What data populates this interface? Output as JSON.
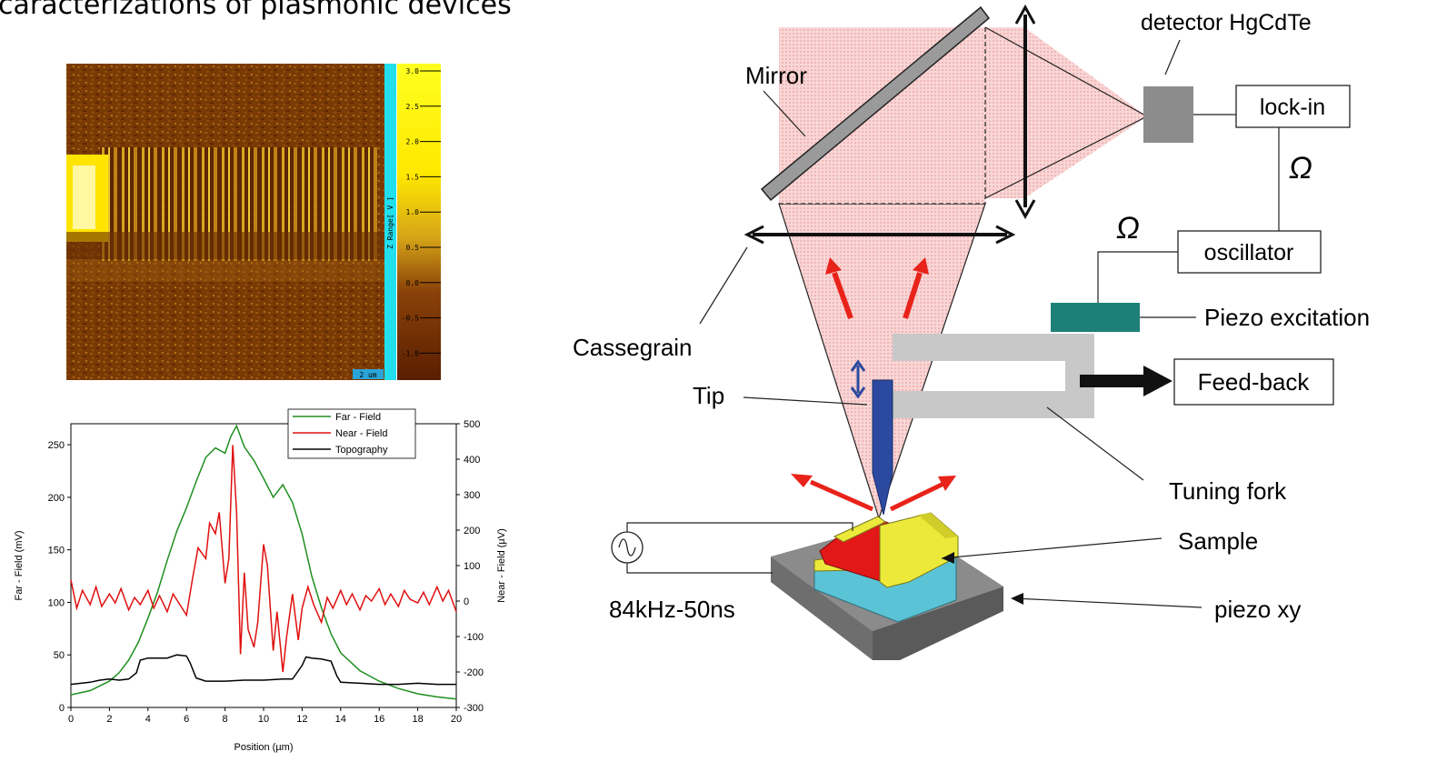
{
  "page_title": "caracterizations of plasmonic devices",
  "afm_map": {
    "colorbar_ticks": [
      "3.0",
      "2.5",
      "2.0",
      "1.5",
      "1.0",
      "0.5",
      "0.0",
      "-0.5",
      "-1.0"
    ],
    "colorbar_label": "Z Range[ V ]",
    "scale_label": "2 um"
  },
  "chart_data": {
    "type": "line",
    "xlabel": "Position (µm)",
    "ylabel": "Far - Field (mV)",
    "y2label": "Near - Field (µV)",
    "xlim": [
      0,
      20
    ],
    "ylim": [
      0,
      270
    ],
    "y2lim": [
      -300,
      500
    ],
    "x_ticks": [
      0,
      2,
      4,
      6,
      8,
      10,
      12,
      14,
      16,
      18,
      20
    ],
    "y_ticks": [
      0,
      50,
      100,
      150,
      200,
      250
    ],
    "y2_ticks": [
      -300,
      -200,
      -100,
      0,
      100,
      200,
      300,
      400,
      500
    ],
    "legend_position": "top-right",
    "series": [
      {
        "name": "Far - Field",
        "axis": "left",
        "color": "#1f8f1f",
        "x": [
          0,
          1,
          2,
          2.5,
          3,
          3.5,
          4,
          4.5,
          5,
          5.5,
          6,
          6.5,
          7,
          7.5,
          8,
          8.3,
          8.6,
          9,
          9.5,
          10,
          10.5,
          11,
          11.5,
          12,
          12.5,
          13,
          13.5,
          14,
          15,
          16,
          17,
          18,
          19,
          20
        ],
        "y": [
          12,
          16,
          25,
          33,
          45,
          62,
          85,
          110,
          140,
          168,
          190,
          215,
          238,
          247,
          242,
          258,
          268,
          248,
          235,
          218,
          200,
          212,
          195,
          165,
          125,
          95,
          70,
          52,
          35,
          25,
          18,
          13,
          10,
          8
        ]
      },
      {
        "name": "Near - Field",
        "axis": "right",
        "color": "#e01010",
        "x": [
          0,
          0.3,
          0.6,
          1,
          1.3,
          1.6,
          2,
          2.3,
          2.6,
          3,
          3.3,
          3.6,
          4,
          4.3,
          4.6,
          5,
          5.3,
          5.6,
          6,
          6.3,
          6.6,
          7,
          7.2,
          7.5,
          7.7,
          8,
          8.2,
          8.4,
          8.6,
          8.8,
          9,
          9.2,
          9.5,
          9.7,
          10,
          10.2,
          10.5,
          10.7,
          11,
          11.2,
          11.5,
          11.8,
          12,
          12.3,
          12.6,
          13,
          13.3,
          13.6,
          14,
          14.3,
          14.6,
          15,
          15.3,
          15.6,
          16,
          16.3,
          16.6,
          17,
          17.3,
          17.6,
          18,
          18.3,
          18.6,
          19,
          19.3,
          19.6,
          20
        ],
        "y": [
          60,
          -20,
          30,
          -10,
          40,
          -15,
          20,
          -5,
          35,
          -25,
          10,
          -10,
          30,
          -20,
          15,
          -30,
          20,
          -5,
          -40,
          60,
          150,
          120,
          220,
          190,
          250,
          50,
          120,
          440,
          250,
          -150,
          80,
          -80,
          -130,
          -60,
          160,
          100,
          -140,
          -30,
          -200,
          -100,
          20,
          -110,
          -20,
          40,
          -10,
          -60,
          10,
          -20,
          30,
          -10,
          20,
          -25,
          15,
          0,
          35,
          -10,
          20,
          -15,
          30,
          5,
          -5,
          25,
          -10,
          40,
          0,
          30,
          -30
        ]
      },
      {
        "name": "Topography",
        "axis": "left",
        "color": "#000000",
        "x": [
          0,
          1,
          1.5,
          2,
          2.5,
          3,
          3.4,
          3.6,
          4,
          5,
          5.5,
          6,
          6.2,
          6.5,
          7,
          8,
          9,
          10,
          11,
          11.5,
          12,
          12.2,
          12.5,
          13,
          13.5,
          13.8,
          14,
          15,
          16,
          17,
          18,
          19,
          20
        ],
        "y": [
          22,
          24,
          26,
          27,
          26,
          27,
          33,
          45,
          47,
          47,
          50,
          49,
          42,
          28,
          25,
          25,
          26,
          26,
          27,
          27,
          40,
          48,
          47,
          46,
          44,
          30,
          24,
          23,
          22,
          22,
          23,
          22,
          22
        ]
      }
    ]
  },
  "diagram": {
    "mirror_label": "Mirror",
    "detector_label": "detector HgCdTe",
    "lockin_label": "lock-in",
    "omega_symbol_1": "Ω",
    "omega_symbol_2": "Ω",
    "oscillator_label": "oscillator",
    "piezo_excitation_label": "Piezo excitation",
    "cassegrain_label": "Cassegrain",
    "tip_label": "Tip",
    "feedback_label": "Feed-back",
    "tuning_fork_label": "Tuning fork",
    "sample_label": "Sample",
    "pulse_label": "84kHz-50ns",
    "piezo_xy_label": "piezo xy",
    "colors": {
      "beam": "#f6caca",
      "piezo_plate": "#1d7f78",
      "fork": "#c8c8c8",
      "tip": "#2b4a9f",
      "arrow_red": "#e8231a",
      "sample_yellow": "#ece93b",
      "sample_red": "#e21818",
      "sample_cyan": "#5bc3d6",
      "stage": "#8b8b8b"
    }
  }
}
